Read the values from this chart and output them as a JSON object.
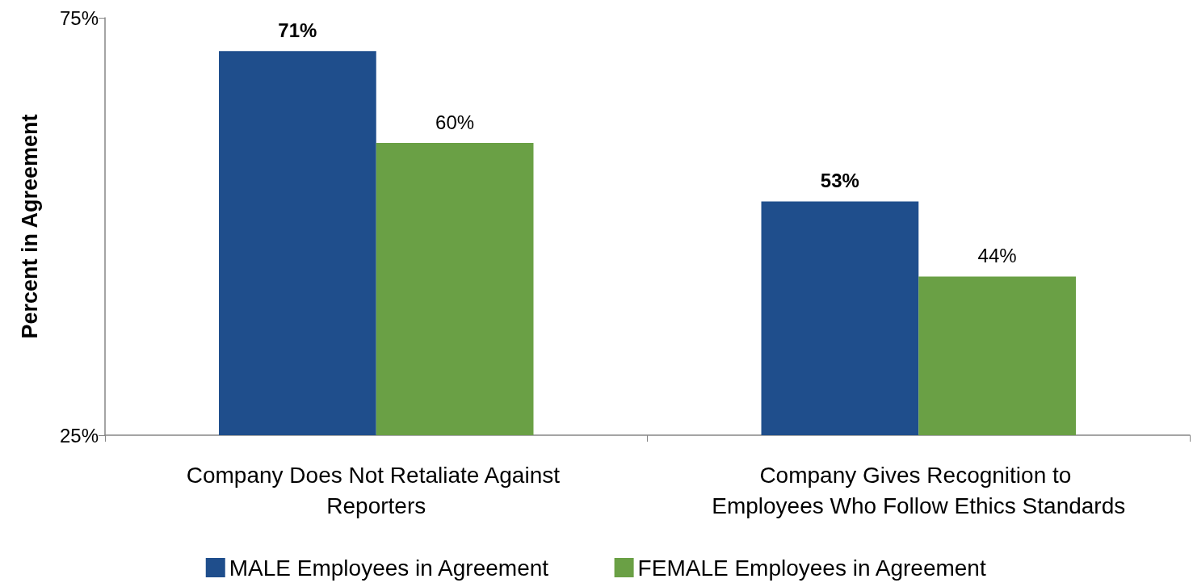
{
  "chart_data": {
    "type": "bar",
    "ylabel": "Percent in Agreement",
    "categories": [
      "Company Does Not Retaliate Against Reporters",
      "Company Gives Recognition to Employees Who Follow Ethics Standards"
    ],
    "series": [
      {
        "name": "MALE Employees in Agreement",
        "color": "#1f4e8c",
        "values": [
          71,
          53
        ],
        "value_labels": [
          "71%",
          "53%"
        ]
      },
      {
        "name": "FEMALE Employees in Agreement",
        "color": "#6aa045",
        "values": [
          60,
          44
        ],
        "value_labels": [
          "60%",
          "44%"
        ]
      }
    ],
    "ylim": [
      25,
      75
    ],
    "yticks": [
      {
        "value": 25,
        "label": "25%"
      },
      {
        "value": 75,
        "label": "75%"
      }
    ],
    "grid": false,
    "legend": "bottom"
  }
}
